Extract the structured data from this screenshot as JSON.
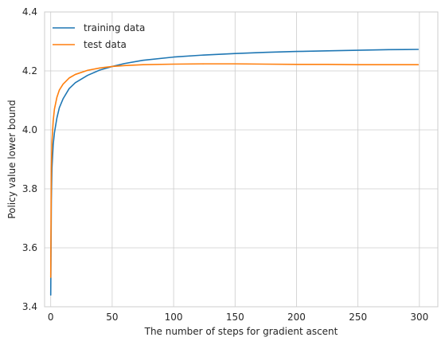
{
  "chart_data": {
    "type": "line",
    "title": "",
    "xlabel": "The number of steps for gradient ascent",
    "ylabel": "Policy value lower bound",
    "xlim": [
      -5,
      315
    ],
    "ylim": [
      3.4,
      4.4
    ],
    "xticks": [
      0,
      50,
      100,
      150,
      200,
      250,
      300
    ],
    "yticks": [
      3.4,
      3.6,
      3.8,
      4.0,
      4.2,
      4.4
    ],
    "grid": true,
    "legend_position": "top-left",
    "series": [
      {
        "name": "training data",
        "color": "#1f77b4",
        "x": [
          0,
          0.5,
          1,
          2,
          3,
          5,
          7,
          10,
          15,
          20,
          30,
          40,
          50,
          60,
          75,
          100,
          125,
          150,
          175,
          200,
          225,
          250,
          275,
          299
        ],
        "y": [
          3.44,
          3.76,
          3.87,
          3.95,
          3.99,
          4.04,
          4.075,
          4.105,
          4.14,
          4.16,
          4.185,
          4.203,
          4.215,
          4.225,
          4.236,
          4.247,
          4.254,
          4.259,
          4.263,
          4.266,
          4.268,
          4.27,
          4.272,
          4.273
        ]
      },
      {
        "name": "test data",
        "color": "#ff7f0e",
        "x": [
          0,
          0.5,
          1,
          2,
          3,
          5,
          7,
          10,
          15,
          20,
          30,
          40,
          50,
          60,
          75,
          100,
          125,
          150,
          175,
          200,
          225,
          250,
          275,
          299
        ],
        "y": [
          3.5,
          3.87,
          3.96,
          4.03,
          4.07,
          4.11,
          4.135,
          4.155,
          4.176,
          4.188,
          4.202,
          4.21,
          4.215,
          4.218,
          4.221,
          4.223,
          4.224,
          4.224,
          4.223,
          4.222,
          4.222,
          4.221,
          4.221,
          4.221
        ]
      }
    ]
  }
}
